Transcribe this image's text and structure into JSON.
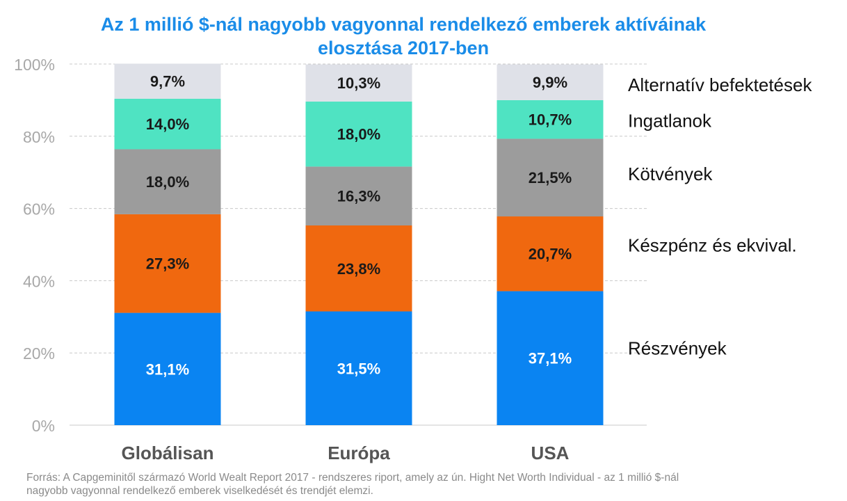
{
  "title": {
    "line1": "Az 1 millió $-nál nagyobb vagyonnal rendelkező emberek aktíváinak",
    "line2": "elosztása 2017-ben"
  },
  "source": {
    "line1": "Forrás: A Capgeminitől származó World Wealt Report 2017 - rendszeres riport, amely az ún. Hight Net Worth Individual - az 1 millió $-nál",
    "line2": "nagyobb vagyonnal rendelkező emberek viselkedését és trendjét elemzi."
  },
  "chart_data": {
    "type": "bar",
    "stacked": true,
    "categories": [
      "Globálisan",
      "Európa",
      "USA"
    ],
    "ylim": [
      0,
      100
    ],
    "yticks": [
      0,
      20,
      40,
      60,
      80,
      100
    ],
    "ytick_labels": [
      "0%",
      "20%",
      "40%",
      "60%",
      "80%",
      "100%"
    ],
    "grid": true,
    "legend_position": "right",
    "series": [
      {
        "name": "Részvények",
        "color": "#0a84f2",
        "label_color": "#ffffff",
        "values": [
          31.1,
          31.5,
          37.1
        ],
        "labels": [
          "31,1%",
          "31,5%",
          "37,1%"
        ]
      },
      {
        "name": "Készpénz és ekvival.",
        "color": "#f0680f",
        "label_color": "#1a1a1a",
        "values": [
          27.3,
          23.8,
          20.7
        ],
        "labels": [
          "27,3%",
          "23,8%",
          "20,7%"
        ]
      },
      {
        "name": "Kötvények",
        "color": "#9c9c9c",
        "label_color": "#1a1a1a",
        "values": [
          18.0,
          16.3,
          21.5
        ],
        "labels": [
          "18,0%",
          "16,3%",
          "21,5%"
        ]
      },
      {
        "name": "Ingatlanok",
        "color": "#4fe3c2",
        "label_color": "#1a1a1a",
        "values": [
          14.0,
          18.0,
          10.7
        ],
        "labels": [
          "14,0%",
          "18,0%",
          "10,7%"
        ]
      },
      {
        "name": "Alternatív befektetések",
        "color": "#dfe1e8",
        "label_color": "#1a1a1a",
        "values": [
          9.7,
          10.3,
          9.9
        ],
        "labels": [
          "9,7%",
          "10,3%",
          "9,9%"
        ]
      }
    ]
  }
}
